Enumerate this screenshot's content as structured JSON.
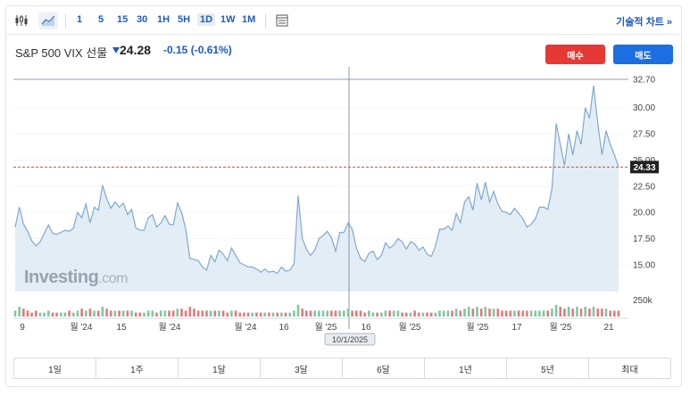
{
  "toolbar": {
    "timeframes": [
      "1",
      "5",
      "15",
      "30",
      "1H",
      "5H",
      "1D",
      "1W",
      "1M"
    ],
    "selected_timeframe": "1D",
    "tech_chart_label": "기술적 차트 »"
  },
  "instrument": {
    "name": "S&P 500 VIX 선물",
    "price": "24.28",
    "change": "-0.15",
    "change_pct": "(-0.61%)"
  },
  "actions": {
    "buy_label": "매수",
    "sell_label": "매도"
  },
  "watermark": {
    "brand": "Investing",
    "suffix": ".com"
  },
  "chart_data": {
    "type": "area",
    "y_ticks": [
      "32.70",
      "30.00",
      "27.50",
      "25.00",
      "22.50",
      "20.00",
      "17.50",
      "15.00"
    ],
    "last_price_label": "24.33",
    "volume_label": "250k",
    "x_ticks": [
      "9",
      "월 '24",
      "15",
      "월 '24",
      "월 '24",
      "16",
      "월 '25",
      "16",
      "월 '25",
      "월 '25",
      "17",
      "월 '25",
      "21"
    ],
    "crosshair_date": "10/1/2025",
    "ylim": [
      12.0,
      33.5
    ],
    "series": [
      18.6,
      20.5,
      18.9,
      18.2,
      17.3,
      16.8,
      17.2,
      18.0,
      18.8,
      18.0,
      17.9,
      18.1,
      18.3,
      18.2,
      18.5,
      20.0,
      19.5,
      20.8,
      19.0,
      20.5,
      20.2,
      22.6,
      21.3,
      20.4,
      21.0,
      20.5,
      20.9,
      19.8,
      20.3,
      18.5,
      18.3,
      18.3,
      19.5,
      19.8,
      18.6,
      19.0,
      19.7,
      18.9,
      18.8,
      20.9,
      20.0,
      18.4,
      15.6,
      15.5,
      15.4,
      14.8,
      14.5,
      15.9,
      15.3,
      16.4,
      16.0,
      15.4,
      16.6,
      15.9,
      15.2,
      15.0,
      14.8,
      14.8,
      14.6,
      14.3,
      14.6,
      14.3,
      14.4,
      14.2,
      14.8,
      14.4,
      14.5,
      15.1,
      21.6,
      17.5,
      16.5,
      15.9,
      16.4,
      17.5,
      17.8,
      18.2,
      17.6,
      16.3,
      18.1,
      18.1,
      19.0,
      18.4,
      16.6,
      15.6,
      15.3,
      16.1,
      16.3,
      15.5,
      15.9,
      17.1,
      16.6,
      16.9,
      17.5,
      17.2,
      16.5,
      17.2,
      17.0,
      16.4,
      16.7,
      16.0,
      15.8,
      16.8,
      18.4,
      18.4,
      18.7,
      18.3,
      19.9,
      19.0,
      21.0,
      21.5,
      20.2,
      22.8,
      21.2,
      22.9,
      21.0,
      22.0,
      20.8,
      20.1,
      20.0,
      19.8,
      20.4,
      19.9,
      19.4,
      18.6,
      18.9,
      19.4,
      20.5,
      20.5,
      20.3,
      22.3,
      28.5,
      26.5,
      24.5,
      27.5,
      25.5,
      27.8,
      26.5,
      30.0,
      29.0,
      32.1,
      28.5,
      25.5,
      27.8,
      26.5,
      25.5,
      24.33
    ],
    "volume": [
      3,
      5,
      4,
      3,
      2,
      3,
      2,
      2,
      3,
      2,
      2,
      2,
      2,
      3,
      2,
      3,
      4,
      3,
      4,
      3,
      3,
      5,
      4,
      3,
      3,
      3,
      3,
      3,
      3,
      2,
      2,
      2,
      3,
      3,
      2,
      3,
      3,
      3,
      3,
      4,
      4,
      3,
      5,
      4,
      3,
      3,
      3,
      3,
      3,
      3,
      3,
      2,
      3,
      3,
      2,
      2,
      2,
      2,
      2,
      2,
      2,
      2,
      2,
      2,
      2,
      2,
      2,
      3,
      6,
      4,
      3,
      3,
      3,
      3,
      3,
      3,
      3,
      3,
      3,
      3,
      4,
      3,
      3,
      3,
      2,
      3,
      2,
      2,
      2,
      3,
      3,
      3,
      3,
      2,
      2,
      2,
      3,
      2,
      2,
      2,
      2,
      2,
      3,
      3,
      3,
      3,
      4,
      3,
      4,
      5,
      4,
      5,
      4,
      5,
      4,
      4,
      4,
      3,
      3,
      3,
      3,
      3,
      3,
      3,
      3,
      3,
      3,
      3,
      3,
      4,
      6,
      5,
      4,
      5,
      4,
      5,
      4,
      5,
      4,
      5,
      4,
      4,
      4,
      3,
      3,
      3
    ],
    "volume_up_color": "#7fc8a3",
    "volume_down_color": "#e27b7b"
  },
  "periods": [
    "1일",
    "1주",
    "1달",
    "3달",
    "6달",
    "1년",
    "5년",
    "최대"
  ],
  "colors": {
    "accent": "#1e5bbf",
    "buy": "#e53935",
    "sell": "#1c6fe0",
    "line": "#7fa9cf",
    "area": "#e3edf6"
  }
}
